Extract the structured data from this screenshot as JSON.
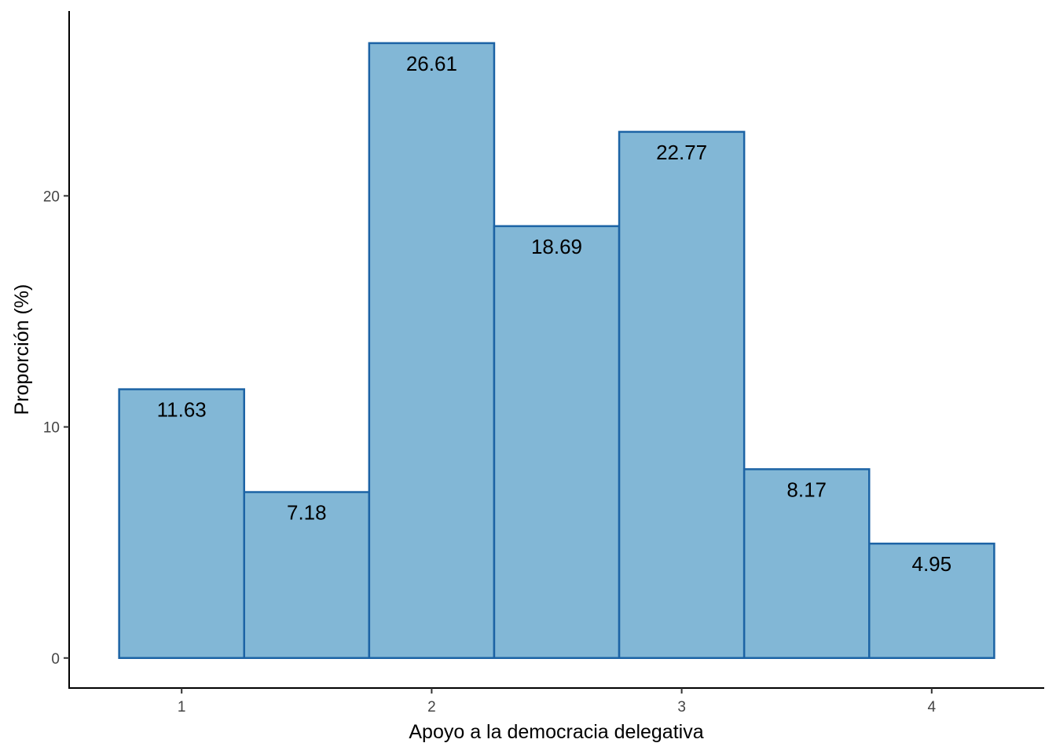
{
  "chart_data": {
    "type": "bar",
    "xlabel": "Apoyo a la democracia delegativa",
    "ylabel": "Proporción (%)",
    "bins": [
      {
        "from": 0.75,
        "to": 1.25,
        "value": 11.63,
        "label": "11.63"
      },
      {
        "from": 1.25,
        "to": 1.75,
        "value": 7.18,
        "label": "7.18"
      },
      {
        "from": 1.75,
        "to": 2.25,
        "value": 26.61,
        "label": "26.61"
      },
      {
        "from": 2.25,
        "to": 2.75,
        "value": 18.69,
        "label": "18.69"
      },
      {
        "from": 2.75,
        "to": 3.25,
        "value": 22.77,
        "label": "22.77"
      },
      {
        "from": 3.25,
        "to": 3.75,
        "value": 8.17,
        "label": "8.17"
      },
      {
        "from": 3.75,
        "to": 4.25,
        "value": 4.95,
        "label": "4.95"
      }
    ],
    "x_ticks": [
      1,
      2,
      3,
      4
    ],
    "y_ticks": [
      0,
      10,
      20
    ],
    "xlim": [
      0.55,
      4.45
    ],
    "ylim": [
      -1.3,
      28.0
    ],
    "grid": false,
    "colors": {
      "bar_fill": "#82b7d6",
      "bar_stroke": "#1c63a5"
    }
  }
}
